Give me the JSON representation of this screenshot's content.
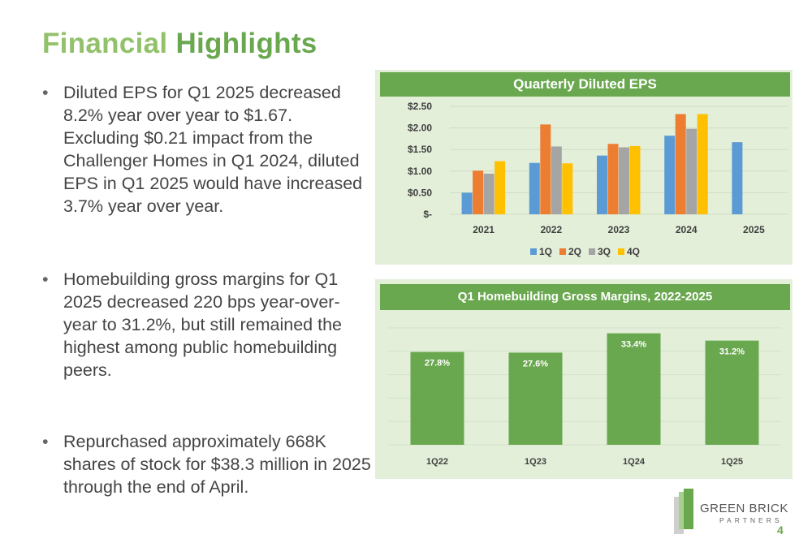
{
  "slide": {
    "title_part1": "Financial",
    "title_part2": "Highlights",
    "bullets": [
      "Diluted EPS for Q1 2025 decreased 8.2% year over year to $1.67. Excluding $0.21 impact from the Challenger Homes in Q1 2024, diluted EPS in Q1 2025 would have increased 3.7% year over year.",
      "Homebuilding gross margins for Q1 2025 decreased 220 bps year-over-year to 31.2%, but still remained the highest among public homebuilding peers.",
      "Repurchased approximately 668K shares of stock for $38.3 million in 2025 through the end of April."
    ],
    "logo": {
      "name": "GREEN BRICK",
      "sub": "PARTNERS"
    },
    "page_number": "4"
  },
  "chart_data": [
    {
      "type": "bar",
      "title": "Quarterly Diluted EPS",
      "categories": [
        "2021",
        "2022",
        "2023",
        "2024",
        "2025"
      ],
      "series": [
        {
          "name": "1Q",
          "color": "#5b9bd5",
          "values": [
            0.5,
            1.19,
            1.36,
            1.82,
            1.67
          ]
        },
        {
          "name": "2Q",
          "color": "#ed7d31",
          "values": [
            1.01,
            2.08,
            1.63,
            2.32,
            null
          ]
        },
        {
          "name": "3Q",
          "color": "#a5a5a5",
          "values": [
            0.94,
            1.57,
            1.55,
            1.98,
            null
          ]
        },
        {
          "name": "4Q",
          "color": "#ffc000",
          "values": [
            1.23,
            1.18,
            1.58,
            2.32,
            null
          ]
        }
      ],
      "ytick_labels": [
        "$-",
        "$0.50",
        "$1.00",
        "$1.50",
        "$2.00",
        "$2.50"
      ],
      "yticks": [
        0,
        0.5,
        1.0,
        1.5,
        2.0,
        2.5
      ],
      "ylim": [
        0,
        2.5
      ],
      "grid": true,
      "legend": "bottom"
    },
    {
      "type": "bar",
      "title": "Q1 Homebuilding Gross Margins, 2022-2025",
      "categories": [
        "1Q22",
        "1Q23",
        "1Q24",
        "1Q25"
      ],
      "values": [
        27.8,
        27.6,
        33.4,
        31.2
      ],
      "data_labels": [
        "27.8%",
        "27.6%",
        "33.4%",
        "31.2%"
      ],
      "color": "#6aa84f",
      "ylim": [
        0,
        35
      ],
      "grid": true
    }
  ]
}
